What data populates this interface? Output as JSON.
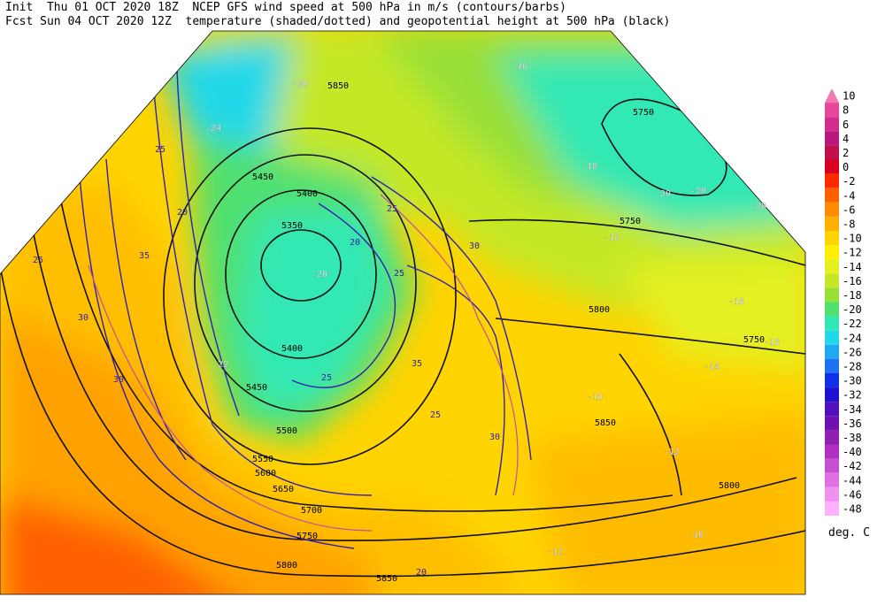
{
  "header": {
    "line1": "Init  Thu 01 OCT 2020 18Z  NCEP GFS wind speed at 500 hPa in m/s (contours/barbs)",
    "line2": "Fcst Sun 04 OCT 2020 12Z  temperature (shaded/dotted) and geopotential height at 500 hPa (black)"
  },
  "colorbar": {
    "unit": "deg. C",
    "levels": [
      10,
      8,
      6,
      4,
      2,
      0,
      -2,
      -4,
      -6,
      -8,
      -10,
      -12,
      -14,
      -16,
      -18,
      -20,
      -22,
      -24,
      -26,
      -28,
      -30,
      -32,
      -34,
      -36,
      -38,
      -40,
      -42,
      -44,
      -46,
      -48
    ],
    "colors": [
      "#f07ab0",
      "#e8489c",
      "#d42c8c",
      "#b8187c",
      "#c0104c",
      "#d80020",
      "#ff2a00",
      "#ff6000",
      "#ff8c00",
      "#ffb000",
      "#ffd400",
      "#fff000",
      "#e4f020",
      "#c4e828",
      "#98e038",
      "#50e070",
      "#30e8b4",
      "#20d8e8",
      "#20a8f0",
      "#2070f0",
      "#1030e8",
      "#2010d0",
      "#5010c0",
      "#7010b0",
      "#9020b0",
      "#b030c0",
      "#c850d0",
      "#e070e0",
      "#f090f0",
      "#ffb0ff"
    ]
  },
  "map": {
    "height_labels": [
      "5850",
      "5750",
      "5450",
      "5400",
      "5350",
      "5400",
      "5450",
      "5500",
      "5550",
      "5600",
      "5650",
      "5700",
      "5750",
      "5800",
      "5850",
      "5750",
      "5800",
      "5850",
      "5750",
      "5800"
    ],
    "temp_labels": [
      "-20",
      "-16",
      "-24",
      "-18",
      "-20",
      "-20",
      "-16",
      "-20",
      "-18",
      "-14",
      "-10",
      "-12",
      "-10",
      "-12",
      "-22",
      "-20",
      "-18"
    ],
    "wind_labels": [
      "25",
      "20",
      "25",
      "35",
      "30",
      "30",
      "25",
      "20",
      "35",
      "25",
      "30",
      "25",
      "30",
      "20",
      "25"
    ]
  }
}
